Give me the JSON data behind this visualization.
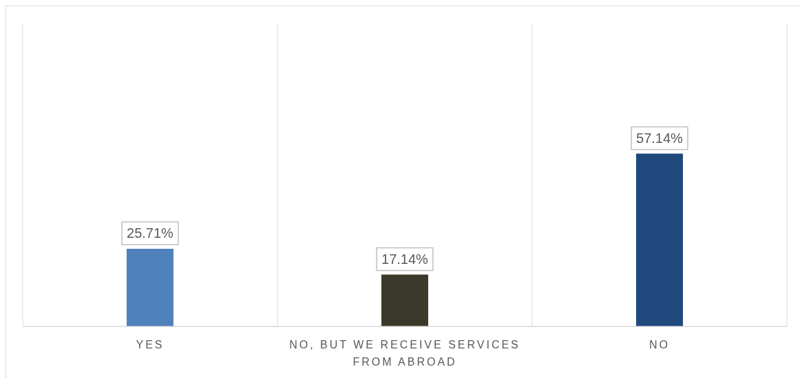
{
  "chart_data": {
    "type": "bar",
    "categories": [
      "YES",
      "NO, BUT WE RECEIVE SERVICES FROM ABROAD",
      "NO"
    ],
    "values": [
      25.71,
      17.14,
      57.14
    ],
    "colors": [
      "#4f81bd",
      "#3b3a2a",
      "#1f497d"
    ],
    "value_labels": [
      "25.71%",
      "17.14%",
      "57.14%"
    ],
    "ylim": [
      0,
      100
    ],
    "grid": "x",
    "tick_labels": "x"
  }
}
